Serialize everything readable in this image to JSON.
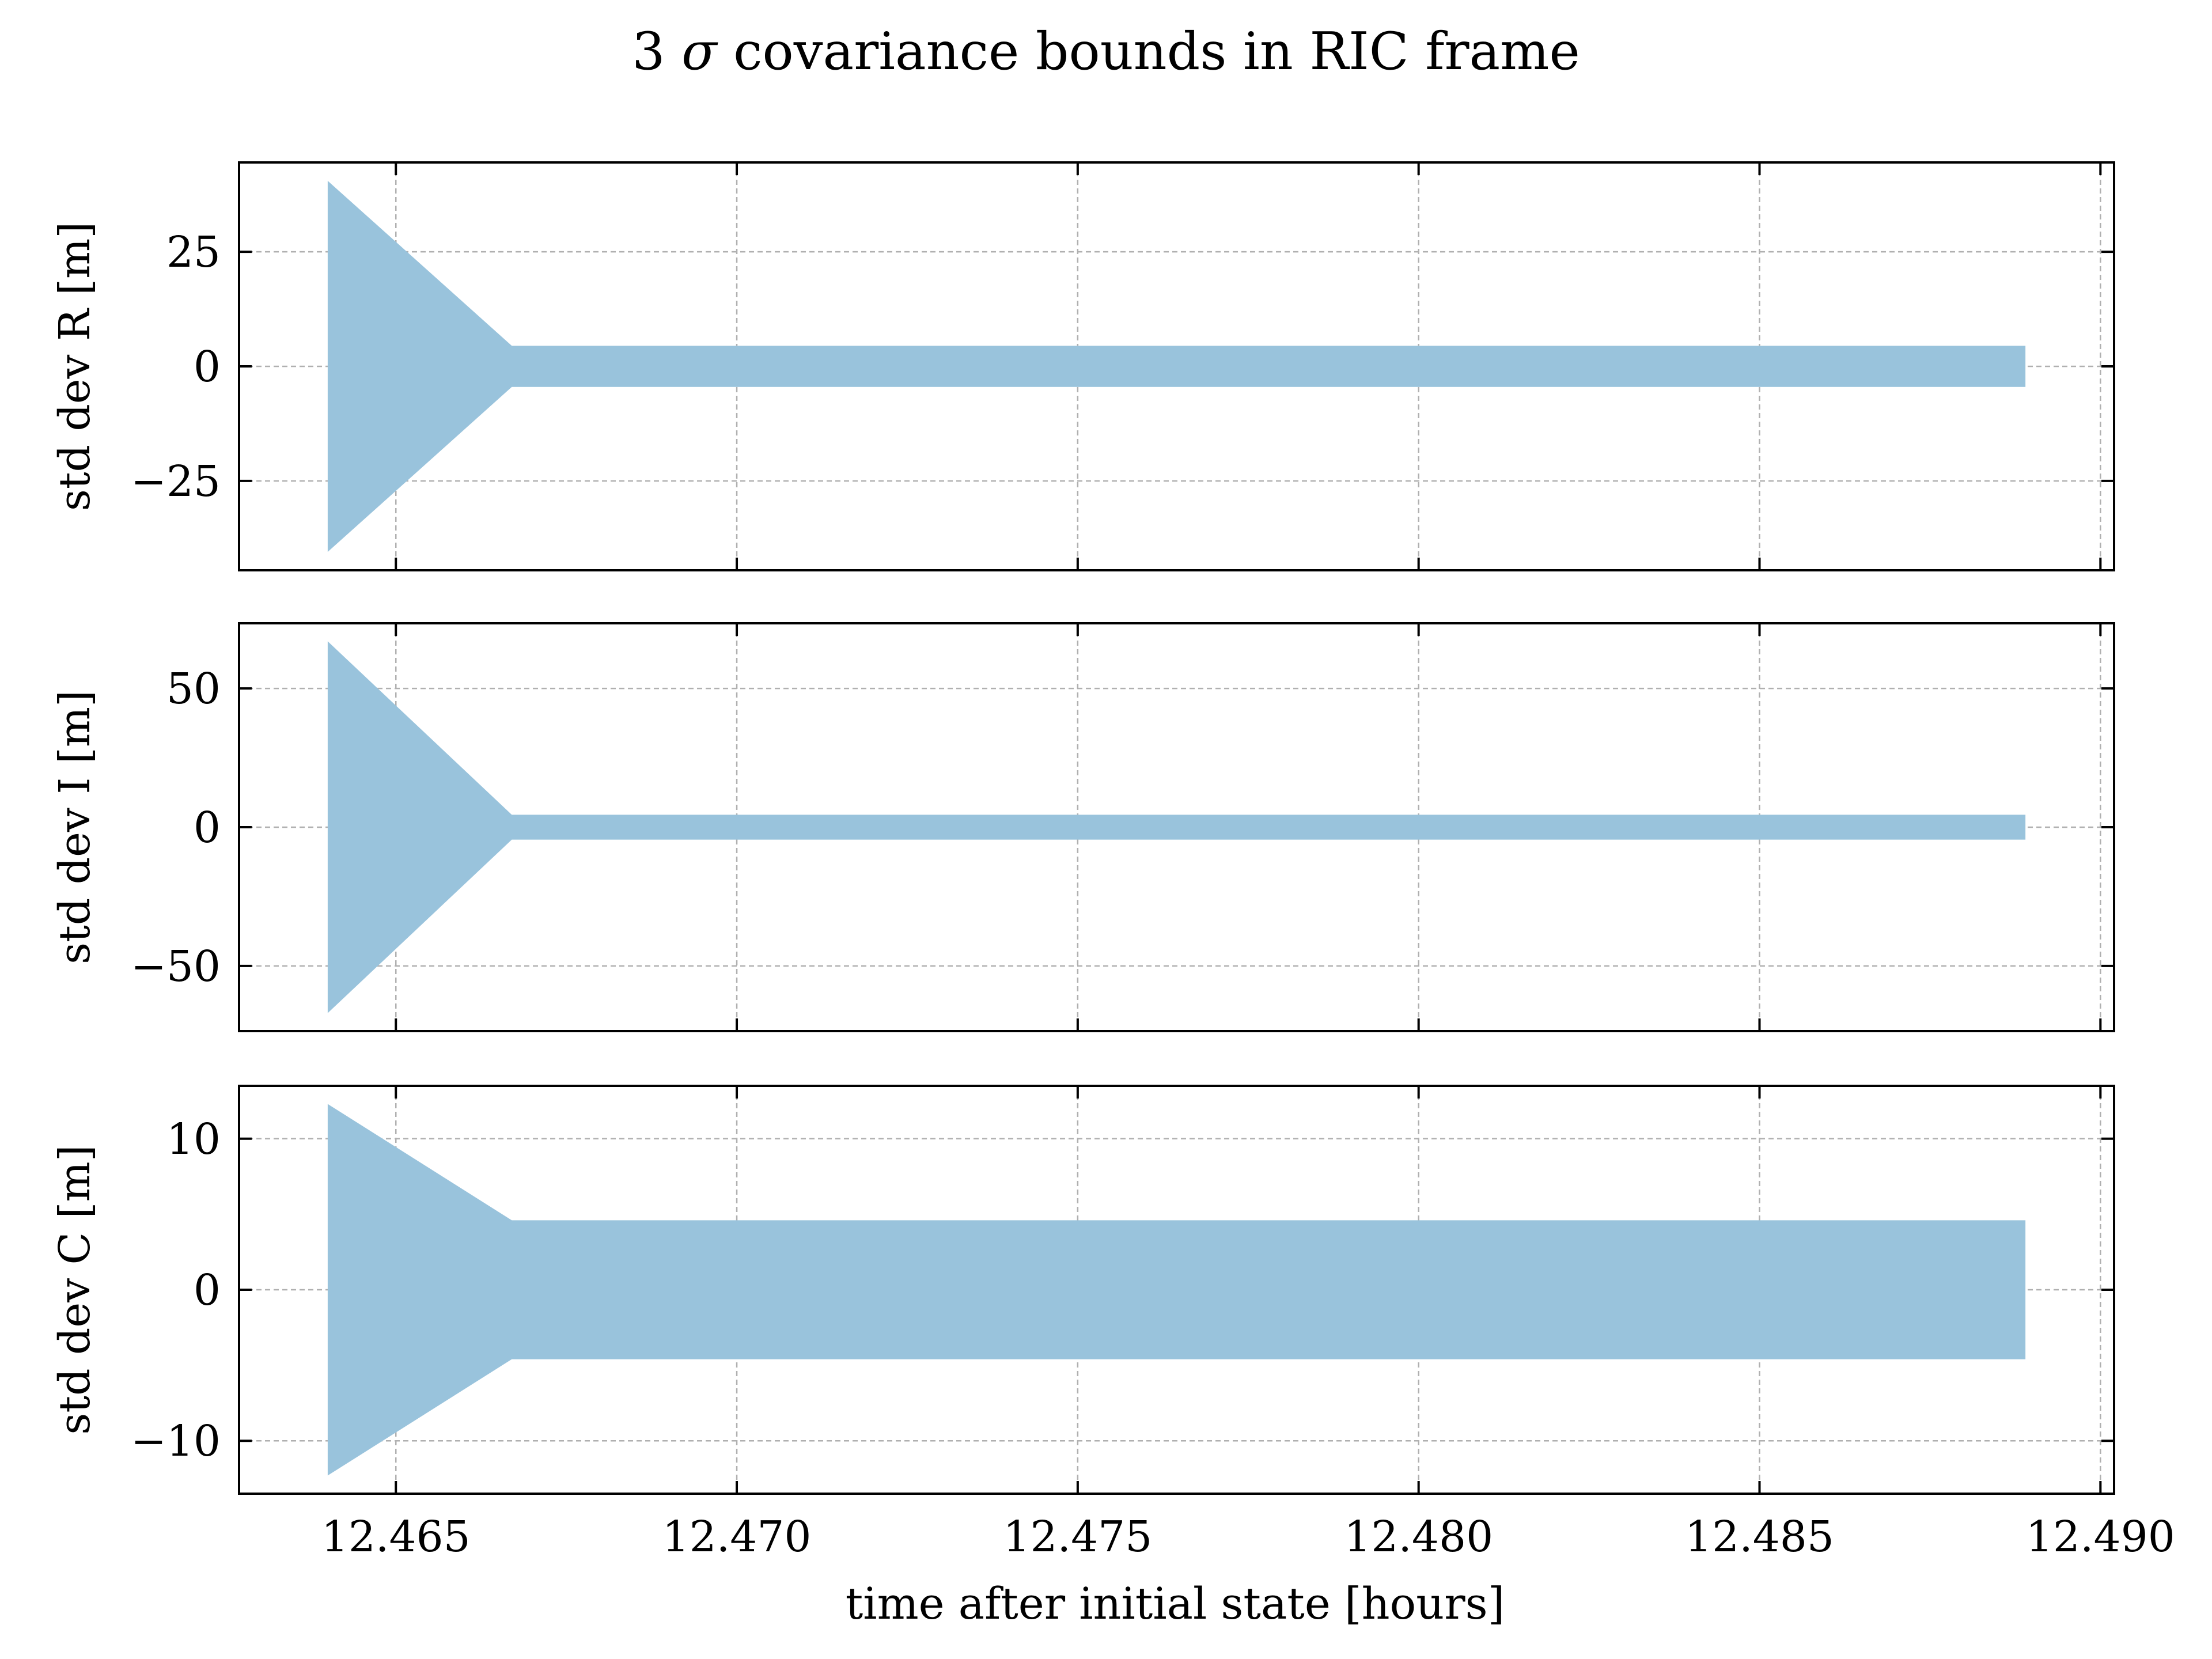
{
  "title_prefix": "3 ",
  "title_sigma": "σ",
  "title_suffix": " covariance bounds in RIC frame",
  "xlabel": "time after initial state [hours]",
  "colors": {
    "fill": "#99c3dc",
    "grid": "#b0b0b0",
    "axis": "#000000",
    "background": "#ffffff"
  },
  "chart_data": [
    {
      "type": "area",
      "ylabel": "std dev R [m]",
      "xlim": [
        12.4627,
        12.4902
      ],
      "ylim": [
        -44.5,
        44.5
      ],
      "xticks": [
        12.465,
        12.47,
        12.475,
        12.48,
        12.485,
        12.49
      ],
      "xtick_labels": [],
      "yticks": [
        -25,
        0,
        25
      ],
      "ytick_labels": [
        "−25",
        "0",
        "25"
      ],
      "grid": true,
      "band": {
        "x": [
          12.464,
          12.4667,
          12.4889
        ],
        "upper": [
          40.5,
          4.5,
          4.5
        ],
        "lower": [
          -40.5,
          -4.5,
          -4.5
        ]
      }
    },
    {
      "type": "area",
      "ylabel": "std dev I [m]",
      "xlim": [
        12.4627,
        12.4902
      ],
      "ylim": [
        -73.5,
        73.5
      ],
      "xticks": [
        12.465,
        12.47,
        12.475,
        12.48,
        12.485,
        12.49
      ],
      "xtick_labels": [],
      "yticks": [
        -50,
        0,
        50
      ],
      "ytick_labels": [
        "−50",
        "0",
        "50"
      ],
      "grid": true,
      "band": {
        "x": [
          12.464,
          12.4667,
          12.4889
        ],
        "upper": [
          67,
          4.5,
          4.5
        ],
        "lower": [
          -67,
          -4.5,
          -4.5
        ]
      }
    },
    {
      "type": "area",
      "ylabel": "std dev C [m]",
      "xlim": [
        12.4627,
        12.4902
      ],
      "ylim": [
        -13.5,
        13.5
      ],
      "xticks": [
        12.465,
        12.47,
        12.475,
        12.48,
        12.485,
        12.49
      ],
      "xtick_labels": [
        "12.465",
        "12.470",
        "12.475",
        "12.480",
        "12.485",
        "12.490"
      ],
      "yticks": [
        -10,
        0,
        10
      ],
      "ytick_labels": [
        "−10",
        "0",
        "10"
      ],
      "grid": true,
      "band": {
        "x": [
          12.464,
          12.4667,
          12.4889
        ],
        "upper": [
          12.3,
          4.6,
          4.6
        ],
        "lower": [
          -12.3,
          -4.6,
          -4.6
        ]
      }
    }
  ]
}
